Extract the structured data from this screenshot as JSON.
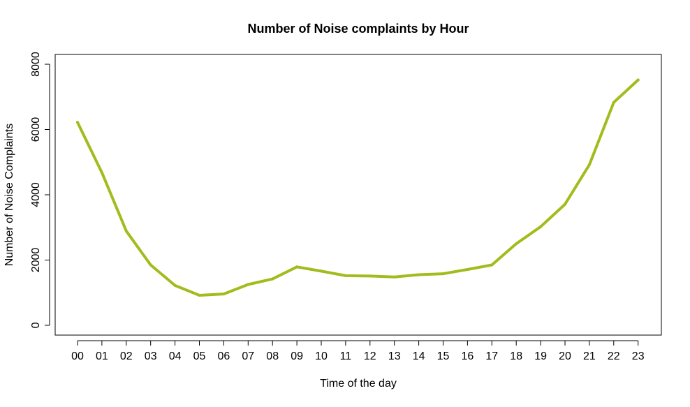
{
  "chart_data": {
    "type": "line",
    "title": "Number of Noise complaints by Hour",
    "xlabel": "Time of the day",
    "ylabel": "Number of Noise Complaints",
    "categories": [
      "00",
      "01",
      "02",
      "03",
      "04",
      "05",
      "06",
      "07",
      "08",
      "09",
      "10",
      "11",
      "12",
      "13",
      "14",
      "15",
      "16",
      "17",
      "18",
      "19",
      "20",
      "21",
      "22",
      "23"
    ],
    "series": [
      {
        "values": [
          6220,
          4680,
          2890,
          1850,
          1220,
          920,
          960,
          1250,
          1420,
          1790,
          1660,
          1520,
          1510,
          1480,
          1550,
          1580,
          1710,
          1850,
          2500,
          3020,
          3710,
          4920,
          6830,
          7520
        ],
        "color": "#a3bb1c"
      }
    ],
    "yticks": [
      0,
      2000,
      4000,
      6000,
      8000
    ],
    "ylim": [
      -300,
      8300
    ],
    "grid": false,
    "legend": "none"
  }
}
